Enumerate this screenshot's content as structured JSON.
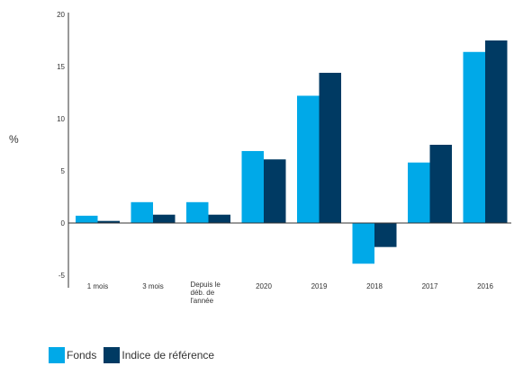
{
  "chart_data": {
    "type": "bar",
    "ylabel": "%",
    "ylim": [
      -5,
      20
    ],
    "yticks": [
      -5,
      0,
      5,
      10,
      15,
      20
    ],
    "categories": [
      "1 mois",
      "3 mois",
      "Depuis le déb. de l'année",
      "2020",
      "2019",
      "2018",
      "2017",
      "2016"
    ],
    "category_lines": [
      [
        "1 mois"
      ],
      [
        "3 mois"
      ],
      [
        "Depuis le",
        "déb. de",
        "l'année"
      ],
      [
        "2020"
      ],
      [
        "2019"
      ],
      [
        "2018"
      ],
      [
        "2017"
      ],
      [
        "2016"
      ]
    ],
    "series": [
      {
        "name": "Fonds",
        "color": "#00a9e8",
        "values": [
          0.7,
          2.0,
          2.0,
          6.9,
          12.2,
          -3.9,
          5.8,
          16.4
        ]
      },
      {
        "name": "Indice de référence",
        "color": "#003a63",
        "values": [
          0.2,
          0.8,
          0.8,
          6.1,
          14.4,
          -2.3,
          7.5,
          17.5
        ]
      }
    ],
    "legend": "bottom-left",
    "grid": false
  }
}
